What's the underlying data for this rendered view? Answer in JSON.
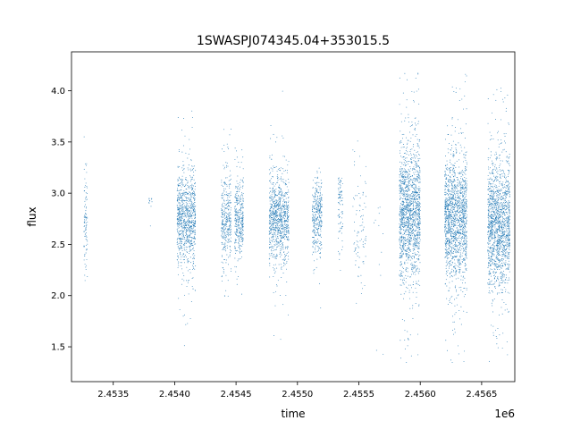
{
  "chart_data": {
    "type": "scatter",
    "title": "1SWASPJ074345.04+353015.5",
    "xlabel": "time",
    "ylabel": "flux",
    "x_offset_label": "1e6",
    "xlim": [
      2453160,
      2456770
    ],
    "ylim": [
      1.16,
      4.38
    ],
    "x_ticks": [
      2.4535,
      2.454,
      2.4545,
      2.455,
      2.4555,
      2.456,
      2.4565
    ],
    "x_tick_labels": [
      "2.4535",
      "2.4540",
      "2.4545",
      "2.4550",
      "2.4555",
      "2.4560",
      "2.4565"
    ],
    "y_ticks": [
      1.5,
      2.0,
      2.5,
      3.0,
      3.5,
      4.0
    ],
    "y_tick_labels": [
      "1.5",
      "2.0",
      "2.5",
      "3.0",
      "3.5",
      "4.0"
    ],
    "grid": false,
    "marker_color": "#1f77b4",
    "series": [
      {
        "observing_seasons": [
          {
            "t_start": 2453260,
            "t_end": 2453290,
            "flux_center": 2.75,
            "flux_spread": 0.25,
            "flux_min": 1.8,
            "flux_max": 3.6,
            "density": "low"
          },
          {
            "t_start": 2453790,
            "t_end": 2453820,
            "flux_center": 2.92,
            "flux_spread": 0.02,
            "flux_min": 2.9,
            "flux_max": 2.95,
            "density": "very-low"
          },
          {
            "t_start": 2454020,
            "t_end": 2454170,
            "flux_center": 2.75,
            "flux_spread": 0.22,
            "flux_min": 1.4,
            "flux_max": 3.85,
            "density": "high"
          },
          {
            "t_start": 2454380,
            "t_end": 2454460,
            "flux_center": 2.75,
            "flux_spread": 0.2,
            "flux_min": 1.35,
            "flux_max": 3.65,
            "density": "medium"
          },
          {
            "t_start": 2454490,
            "t_end": 2454560,
            "flux_center": 2.75,
            "flux_spread": 0.18,
            "flux_min": 1.3,
            "flux_max": 3.45,
            "density": "medium"
          },
          {
            "t_start": 2454770,
            "t_end": 2454930,
            "flux_center": 2.75,
            "flux_spread": 0.2,
            "flux_min": 1.35,
            "flux_max": 4.18,
            "density": "high"
          },
          {
            "t_start": 2455120,
            "t_end": 2455200,
            "flux_center": 2.78,
            "flux_spread": 0.18,
            "flux_min": 1.65,
            "flux_max": 3.25,
            "density": "medium"
          },
          {
            "t_start": 2455330,
            "t_end": 2455370,
            "flux_center": 2.9,
            "flux_spread": 0.2,
            "flux_min": 1.6,
            "flux_max": 3.15,
            "density": "low"
          },
          {
            "t_start": 2455450,
            "t_end": 2455560,
            "flux_center": 2.6,
            "flux_spread": 0.3,
            "flux_min": 1.3,
            "flux_max": 3.55,
            "density": "low"
          },
          {
            "t_start": 2455620,
            "t_end": 2455700,
            "flux_center": 2.55,
            "flux_spread": 0.35,
            "flux_min": 1.35,
            "flux_max": 3.0,
            "density": "very-low"
          },
          {
            "t_start": 2455830,
            "t_end": 2456000,
            "flux_center": 2.8,
            "flux_spread": 0.32,
            "flux_min": 1.33,
            "flux_max": 4.18,
            "density": "very-high"
          },
          {
            "t_start": 2456200,
            "t_end": 2456380,
            "flux_center": 2.75,
            "flux_spread": 0.28,
            "flux_min": 1.33,
            "flux_max": 4.18,
            "density": "very-high"
          },
          {
            "t_start": 2456550,
            "t_end": 2456730,
            "flux_center": 2.68,
            "flux_spread": 0.3,
            "flux_min": 1.33,
            "flux_max": 4.18,
            "density": "very-high"
          }
        ]
      }
    ]
  }
}
